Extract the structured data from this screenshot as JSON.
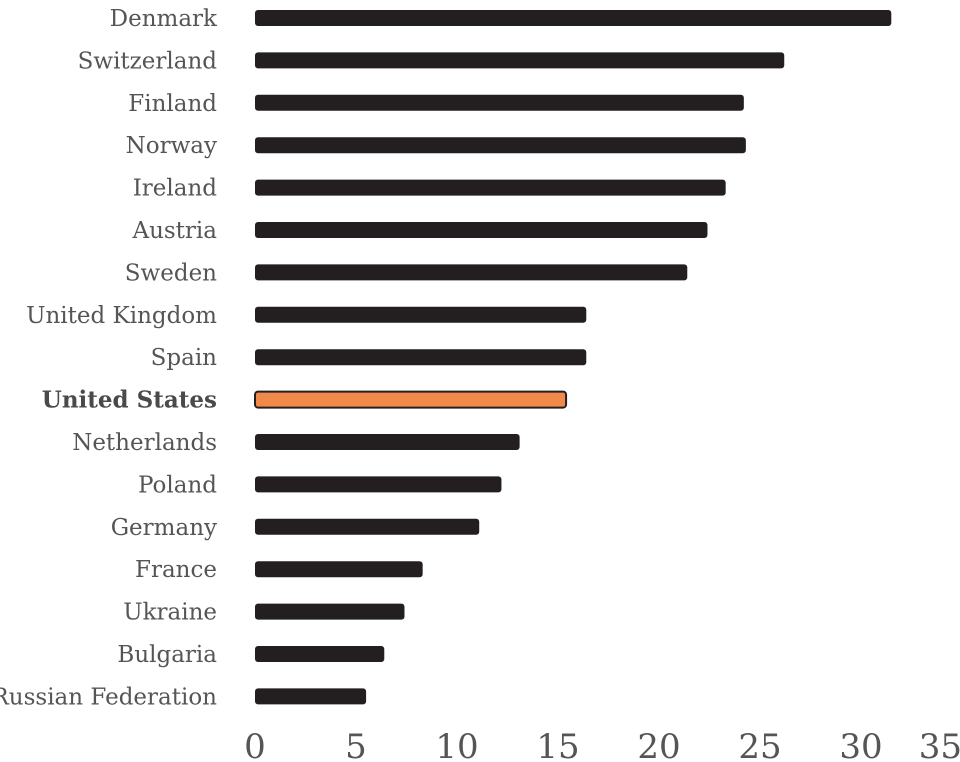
{
  "chart_data": {
    "type": "bar",
    "orientation": "horizontal",
    "categories": [
      "Denmark",
      "Switzerland",
      "Finland",
      "Norway",
      "Ireland",
      "Austria",
      "Sweden",
      "United Kingdom",
      "Spain",
      "United States",
      "Netherlands",
      "Poland",
      "Germany",
      "France",
      "Ukraine",
      "Bulgaria",
      "Russian Federation"
    ],
    "values": [
      31.5,
      26.2,
      24.2,
      24.3,
      23.3,
      22.4,
      21.4,
      16.4,
      16.4,
      15.4,
      13.1,
      12.2,
      11.1,
      8.3,
      7.4,
      6.4,
      5.5
    ],
    "highlight": "United States",
    "colors": {
      "bar": "#231f20",
      "highlight": "#f0894a",
      "highlight_stroke": "#231f20"
    },
    "xticks": [
      0,
      5,
      10,
      15,
      20,
      25,
      30,
      35
    ],
    "xlim": [
      0,
      35
    ],
    "title": "",
    "xlabel": "",
    "ylabel": "",
    "grid": false
  }
}
